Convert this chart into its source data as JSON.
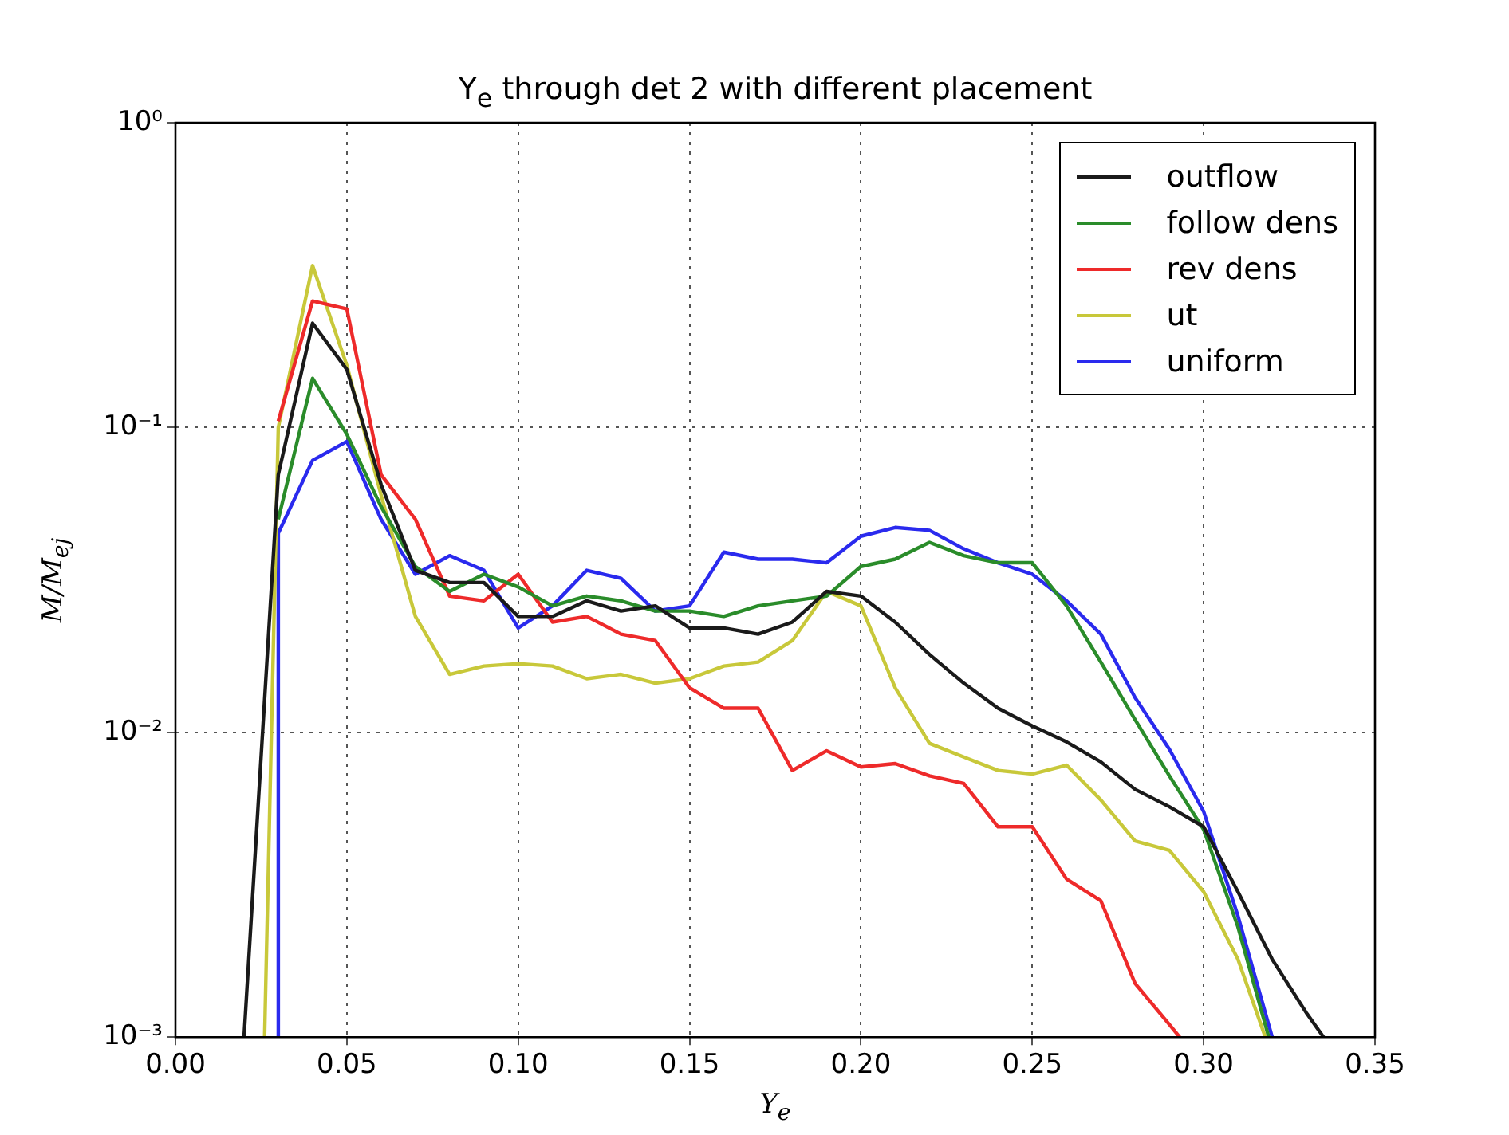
{
  "chart_data": {
    "type": "line",
    "title": "Y$_{e}$ through det 2 with different placement",
    "xlabel": "Y$_{e}$",
    "ylabel": "M/M$_{ej}$",
    "log": "y",
    "grid": true,
    "legend": "top right",
    "line_style": "solid",
    "marker": "none",
    "xlim": [
      0,
      0.35
    ],
    "xticks": [
      {
        "value": 0,
        "label": "0.00"
      },
      {
        "value": 0.05,
        "label": "0.05"
      },
      {
        "value": 0.1,
        "label": "0.10"
      },
      {
        "value": 0.15,
        "label": "0.15"
      },
      {
        "value": 0.2,
        "label": "0.20"
      },
      {
        "value": 0.25,
        "label": "0.25"
      },
      {
        "value": 0.3,
        "label": "0.30"
      },
      {
        "value": 0.35,
        "label": "0.35"
      }
    ],
    "ylim": [
      0.001,
      1
    ],
    "yticks": [
      {
        "value": 0.001,
        "label": "10⁻³"
      },
      {
        "value": 0.01,
        "label": "10⁻²"
      },
      {
        "value": 0.1,
        "label": "10⁻¹"
      },
      {
        "value": 1,
        "label": "10⁰"
      }
    ],
    "series": [
      {
        "name": "outflow",
        "color": "#1a1a1a",
        "x": [
          0.02,
          0.03,
          0.04,
          0.05,
          0.06,
          0.07,
          0.08,
          0.09,
          0.1,
          0.11,
          0.12,
          0.13,
          0.14,
          0.15,
          0.16,
          0.17,
          0.18,
          0.19,
          0.2,
          0.21,
          0.22,
          0.23,
          0.24,
          0.25,
          0.26,
          0.27,
          0.28,
          0.29,
          0.3,
          0.31,
          0.32,
          0.33,
          0.335
        ],
        "values": [
          0.001,
          0.07,
          0.22,
          0.155,
          0.065,
          0.034,
          0.031,
          0.031,
          0.024,
          0.024,
          0.027,
          0.025,
          0.026,
          0.022,
          0.022,
          0.021,
          0.023,
          0.029,
          0.028,
          0.023,
          0.018,
          0.0145,
          0.012,
          0.0105,
          0.0093,
          0.008,
          0.0065,
          0.0057,
          0.0049,
          0.003,
          0.0018,
          0.0012,
          0.001
        ]
      },
      {
        "name": "follow dens",
        "color": "#2a8c2a",
        "x": [
          0.03,
          0.04,
          0.05,
          0.06,
          0.07,
          0.08,
          0.09,
          0.1,
          0.11,
          0.12,
          0.13,
          0.14,
          0.15,
          0.16,
          0.17,
          0.18,
          0.19,
          0.2,
          0.21,
          0.22,
          0.23,
          0.24,
          0.25,
          0.26,
          0.27,
          0.28,
          0.29,
          0.3,
          0.31,
          0.319
        ],
        "values": [
          0.05,
          0.145,
          0.095,
          0.055,
          0.035,
          0.029,
          0.033,
          0.03,
          0.026,
          0.028,
          0.027,
          0.025,
          0.025,
          0.024,
          0.026,
          0.027,
          0.028,
          0.035,
          0.037,
          0.042,
          0.038,
          0.036,
          0.036,
          0.026,
          0.017,
          0.011,
          0.0072,
          0.0048,
          0.0023,
          0.001
        ]
      },
      {
        "name": "rev dens",
        "color": "#ee2a2a",
        "x": [
          0.03,
          0.04,
          0.05,
          0.06,
          0.07,
          0.08,
          0.09,
          0.1,
          0.11,
          0.12,
          0.13,
          0.14,
          0.15,
          0.16,
          0.17,
          0.18,
          0.19,
          0.2,
          0.21,
          0.22,
          0.23,
          0.24,
          0.25,
          0.26,
          0.27,
          0.28,
          0.29,
          0.293
        ],
        "values": [
          0.105,
          0.26,
          0.245,
          0.07,
          0.05,
          0.028,
          0.027,
          0.033,
          0.023,
          0.024,
          0.021,
          0.02,
          0.014,
          0.012,
          0.012,
          0.0075,
          0.0087,
          0.0077,
          0.0079,
          0.0072,
          0.0068,
          0.0049,
          0.0049,
          0.0033,
          0.0028,
          0.0015,
          0.0011,
          0.001
        ]
      },
      {
        "name": "ut",
        "color": "#c8c83a",
        "x": [
          0.026,
          0.03,
          0.04,
          0.05,
          0.06,
          0.07,
          0.08,
          0.09,
          0.1,
          0.11,
          0.12,
          0.13,
          0.14,
          0.15,
          0.16,
          0.17,
          0.18,
          0.19,
          0.2,
          0.21,
          0.22,
          0.23,
          0.24,
          0.25,
          0.26,
          0.27,
          0.28,
          0.29,
          0.3,
          0.31,
          0.318
        ],
        "values": [
          0.001,
          0.1,
          0.34,
          0.16,
          0.06,
          0.024,
          0.0155,
          0.0165,
          0.0168,
          0.0165,
          0.015,
          0.0155,
          0.0145,
          0.015,
          0.0165,
          0.017,
          0.02,
          0.029,
          0.026,
          0.014,
          0.0092,
          0.0083,
          0.0075,
          0.0073,
          0.0078,
          0.006,
          0.0044,
          0.0041,
          0.003,
          0.0018,
          0.001
        ]
      },
      {
        "name": "uniform",
        "color": "#2a2aee",
        "x": [
          0.03,
          0.03,
          0.04,
          0.05,
          0.06,
          0.07,
          0.08,
          0.09,
          0.1,
          0.11,
          0.12,
          0.13,
          0.14,
          0.15,
          0.16,
          0.17,
          0.18,
          0.19,
          0.2,
          0.21,
          0.22,
          0.23,
          0.24,
          0.25,
          0.26,
          0.27,
          0.28,
          0.29,
          0.3,
          0.31,
          0.32
        ],
        "values": [
          0.001,
          0.045,
          0.078,
          0.09,
          0.05,
          0.033,
          0.038,
          0.034,
          0.022,
          0.026,
          0.034,
          0.032,
          0.025,
          0.026,
          0.039,
          0.037,
          0.037,
          0.036,
          0.044,
          0.047,
          0.046,
          0.04,
          0.036,
          0.033,
          0.027,
          0.021,
          0.013,
          0.0088,
          0.0055,
          0.0025,
          0.001
        ]
      }
    ]
  }
}
